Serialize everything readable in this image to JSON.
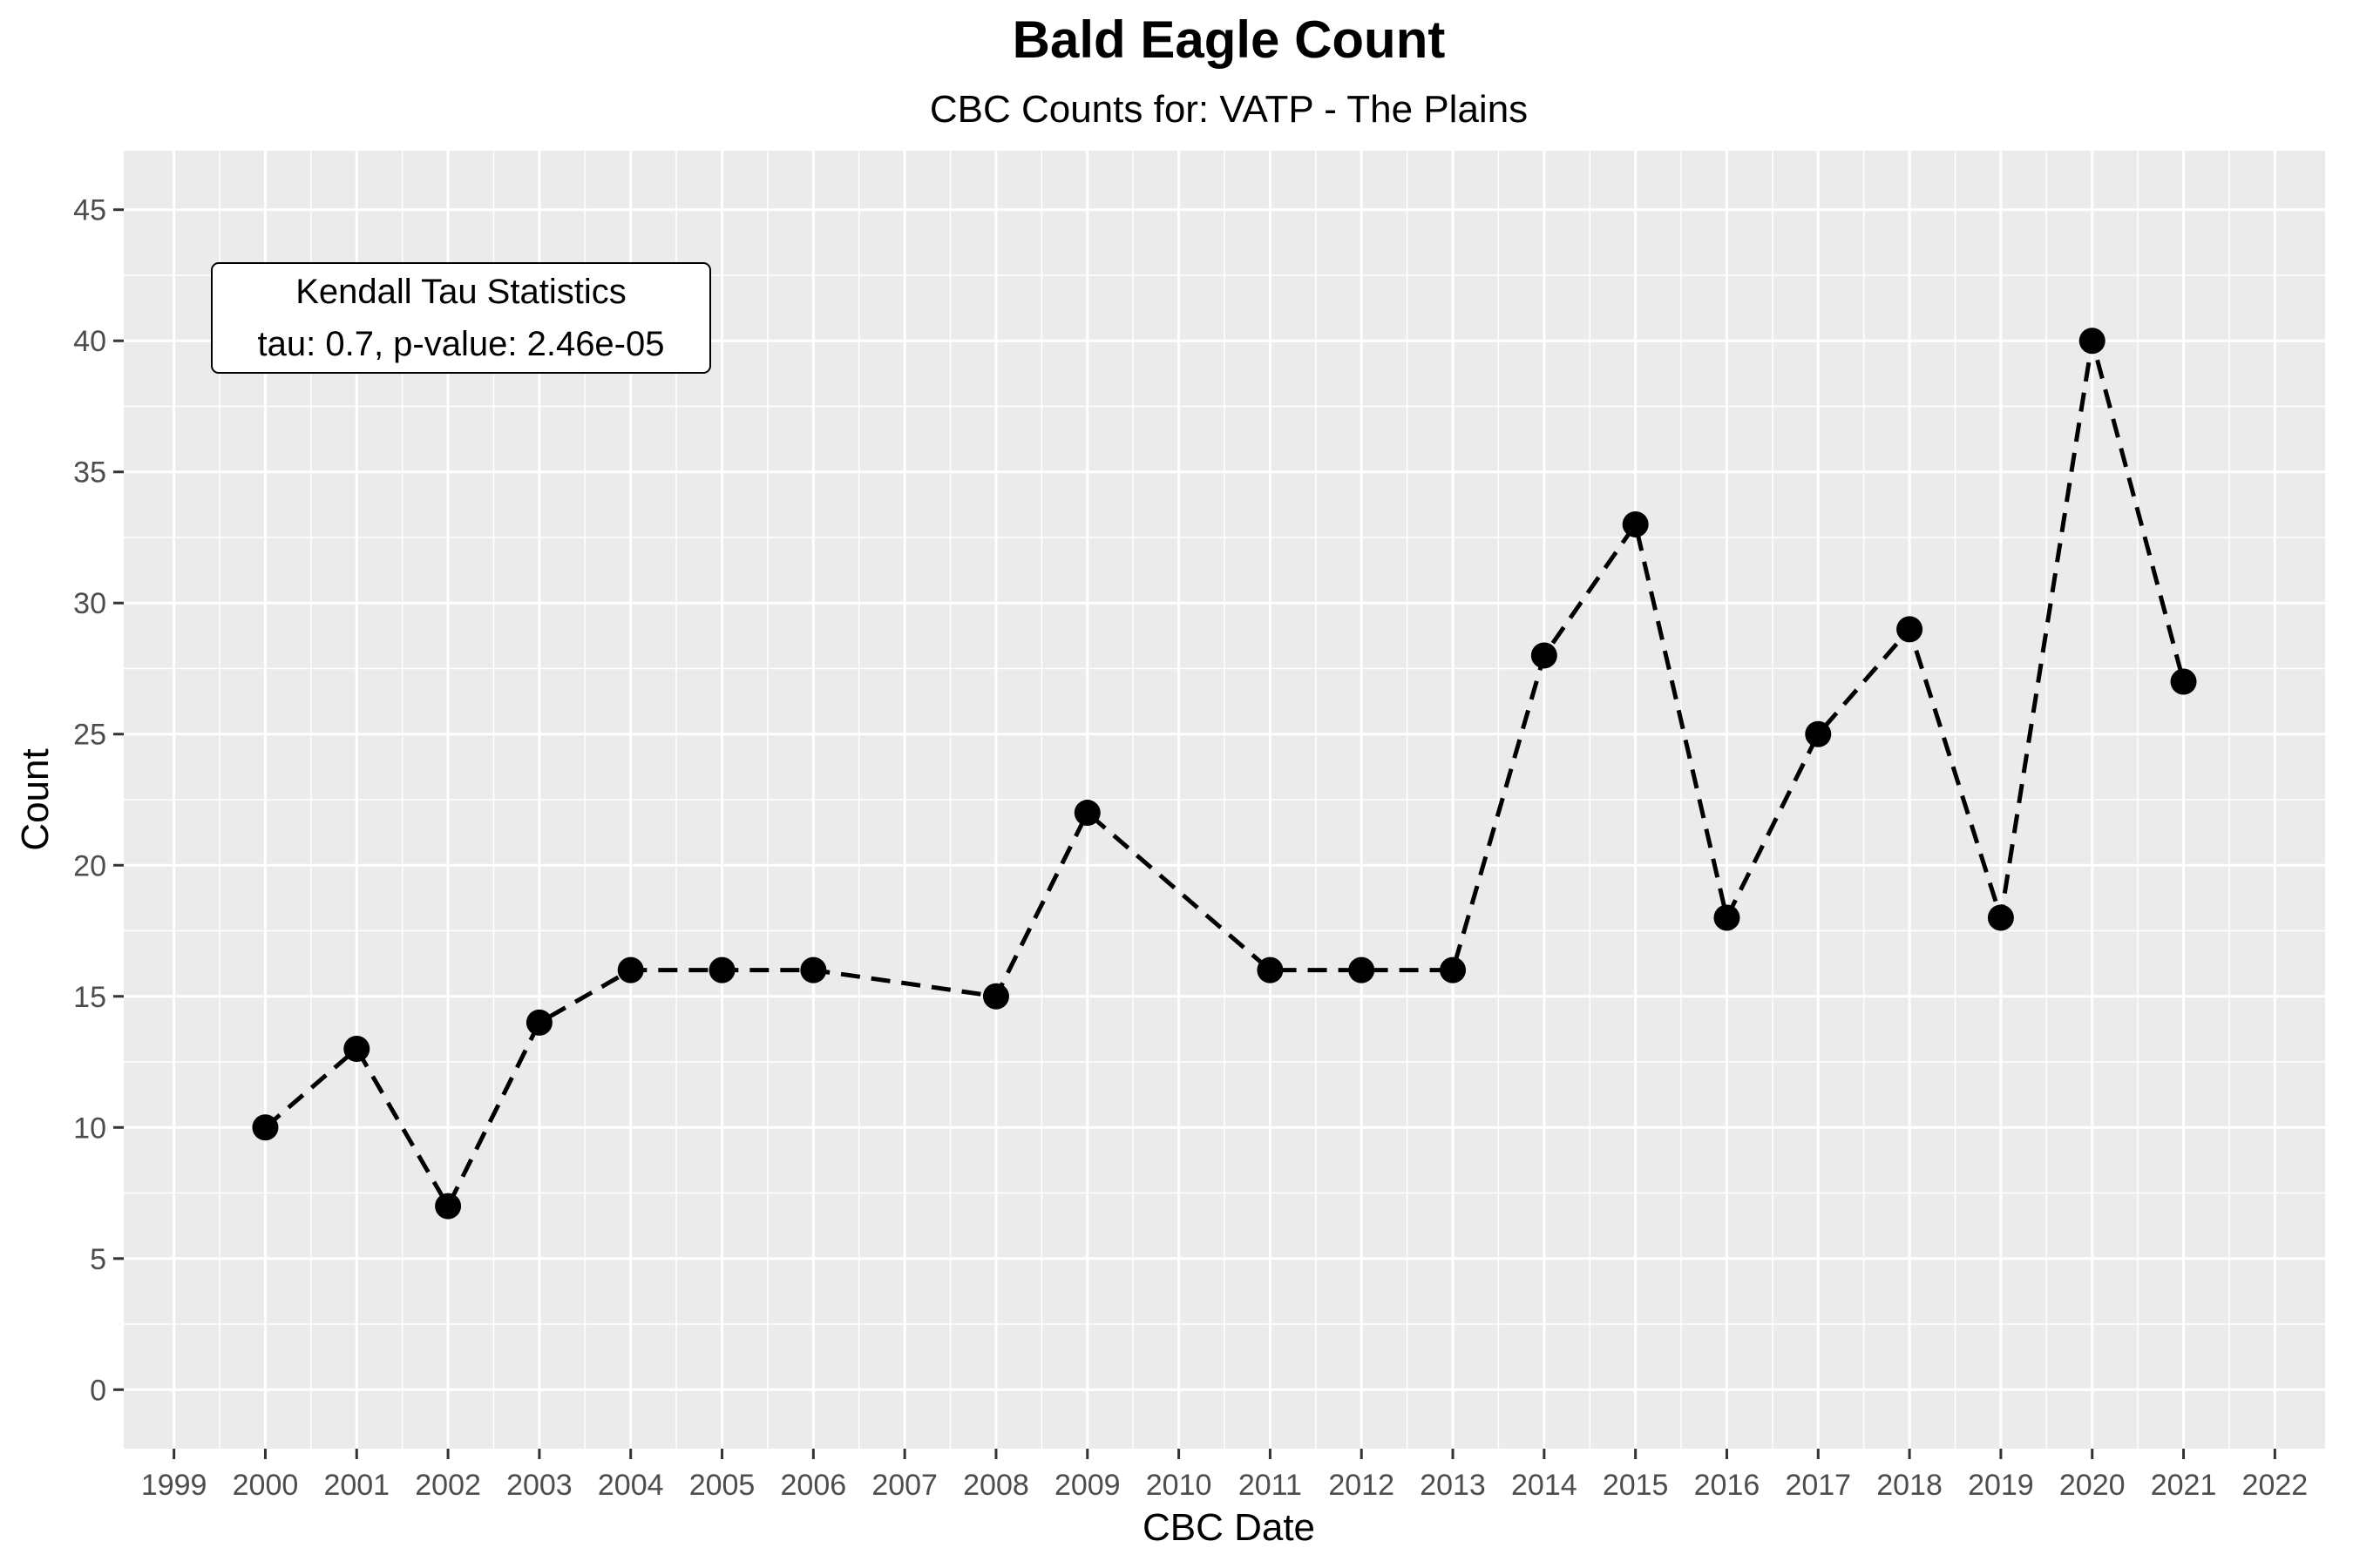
{
  "chart_data": {
    "type": "line",
    "title": "Bald Eagle Count",
    "subtitle": "CBC Counts for: VATP - The Plains",
    "xlabel": "CBC Date",
    "ylabel": "Count",
    "x_ticks": [
      "1999",
      "2000",
      "2001",
      "2002",
      "2003",
      "2004",
      "2005",
      "2006",
      "2007",
      "2008",
      "2009",
      "2010",
      "2011",
      "2012",
      "2013",
      "2014",
      "2015",
      "2016",
      "2017",
      "2018",
      "2019",
      "2020",
      "2021",
      "2022"
    ],
    "y_ticks": [
      "0",
      "5",
      "10",
      "15",
      "20",
      "25",
      "30",
      "35",
      "40",
      "45"
    ],
    "xlim": [
      1999,
      2022
    ],
    "ylim": [
      0,
      45
    ],
    "grid": true,
    "line_style": "dashed",
    "marker": "filled-circle",
    "x": [
      2000,
      2001,
      2002,
      2003,
      2004,
      2005,
      2006,
      2008,
      2009,
      2011,
      2012,
      2013,
      2014,
      2015,
      2016,
      2017,
      2018,
      2019,
      2020,
      2021
    ],
    "y": [
      10,
      13,
      7,
      14,
      16,
      16,
      16,
      15,
      22,
      16,
      16,
      16,
      28,
      33,
      18,
      25,
      29,
      18,
      40,
      27
    ],
    "annotation": {
      "title": "Kendall Tau Statistics",
      "text": "tau: 0.7, p-value: 2.46e-05",
      "placement": "top-left"
    },
    "colors": {
      "panel": "#ebebeb",
      "grid": "#ffffff",
      "line": "#000000",
      "points": "#000000"
    }
  }
}
